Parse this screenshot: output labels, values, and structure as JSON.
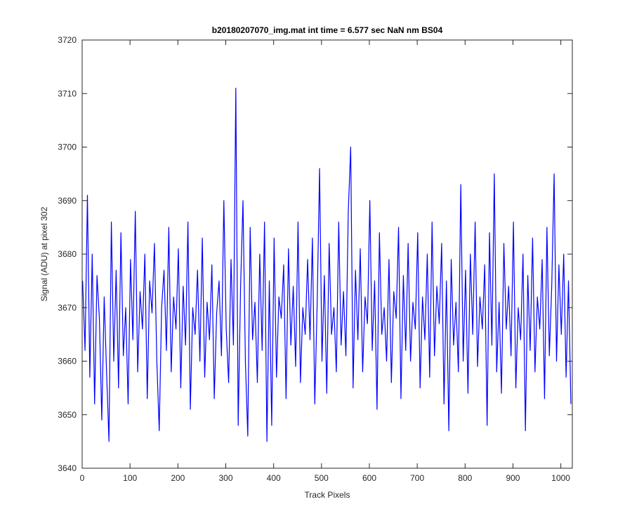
{
  "chart_data": {
    "type": "line",
    "title": "b20180207070_img.mat int time = 6.577 sec  NaN nm BS04",
    "x_label": "Track Pixels",
    "y_label": "Signal (ADU) at pixel 302",
    "xlim": [
      0,
      1024
    ],
    "ylim": [
      3640,
      3720
    ],
    "xticks": [
      0,
      100,
      200,
      300,
      400,
      500,
      600,
      700,
      800,
      900,
      1000
    ],
    "yticks": [
      3640,
      3650,
      3660,
      3670,
      3680,
      3690,
      3700,
      3710,
      3720
    ],
    "grid": false,
    "x": [
      1,
      6,
      11,
      16,
      21,
      26,
      31,
      36,
      41,
      46,
      51,
      56,
      61,
      66,
      71,
      76,
      81,
      86,
      91,
      96,
      101,
      106,
      111,
      116,
      121,
      126,
      131,
      136,
      141,
      146,
      151,
      156,
      161,
      166,
      171,
      176,
      181,
      186,
      191,
      196,
      201,
      206,
      211,
      216,
      221,
      226,
      231,
      236,
      241,
      246,
      251,
      256,
      261,
      266,
      271,
      276,
      281,
      286,
      291,
      296,
      301,
      306,
      311,
      316,
      321,
      326,
      331,
      336,
      341,
      346,
      351,
      356,
      361,
      366,
      371,
      376,
      381,
      386,
      391,
      396,
      401,
      406,
      411,
      416,
      421,
      426,
      431,
      436,
      441,
      446,
      451,
      456,
      461,
      466,
      471,
      476,
      481,
      486,
      491,
      496,
      501,
      506,
      511,
      516,
      521,
      526,
      531,
      536,
      541,
      546,
      551,
      556,
      561,
      566,
      571,
      576,
      581,
      586,
      591,
      596,
      601,
      606,
      611,
      616,
      621,
      626,
      631,
      636,
      641,
      646,
      651,
      656,
      661,
      666,
      671,
      676,
      681,
      686,
      691,
      696,
      701,
      706,
      711,
      716,
      721,
      726,
      731,
      736,
      741,
      746,
      751,
      756,
      761,
      766,
      771,
      776,
      781,
      786,
      791,
      796,
      801,
      806,
      811,
      816,
      821,
      826,
      831,
      836,
      841,
      846,
      851,
      856,
      861,
      866,
      871,
      876,
      881,
      886,
      891,
      896,
      901,
      906,
      911,
      916,
      921,
      926,
      931,
      936,
      941,
      946,
      951,
      956,
      961,
      966,
      971,
      976,
      981,
      986,
      991,
      996,
      1001,
      1006,
      1011,
      1016,
      1021
    ],
    "series": [
      {
        "color": "#0000ff",
        "values": [
          3675,
          3662,
          3691,
          3657,
          3680,
          3652,
          3676,
          3668,
          3649,
          3672,
          3658,
          3645,
          3686,
          3660,
          3677,
          3655,
          3684,
          3661,
          3670,
          3652,
          3679,
          3664,
          3688,
          3658,
          3673,
          3666,
          3680,
          3653,
          3675,
          3669,
          3682,
          3660,
          3647,
          3670,
          3677,
          3662,
          3685,
          3658,
          3672,
          3666,
          3681,
          3655,
          3674,
          3663,
          3686,
          3651,
          3670,
          3665,
          3677,
          3660,
          3683,
          3657,
          3671,
          3664,
          3678,
          3653,
          3669,
          3675,
          3661,
          3690,
          3666,
          3656,
          3679,
          3663,
          3711,
          3648,
          3674,
          3690,
          3660,
          3646,
          3685,
          3664,
          3671,
          3656,
          3680,
          3662,
          3686,
          3645,
          3675,
          3648,
          3683,
          3657,
          3672,
          3668,
          3678,
          3653,
          3681,
          3663,
          3674,
          3659,
          3686,
          3656,
          3670,
          3665,
          3679,
          3664,
          3683,
          3652,
          3671,
          3696,
          3660,
          3676,
          3654,
          3682,
          3665,
          3670,
          3658,
          3686,
          3663,
          3673,
          3661,
          3688,
          3700,
          3655,
          3677,
          3664,
          3681,
          3658,
          3672,
          3667,
          3690,
          3662,
          3675,
          3651,
          3684,
          3665,
          3670,
          3660,
          3679,
          3656,
          3673,
          3668,
          3685,
          3653,
          3676,
          3662,
          3682,
          3660,
          3671,
          3666,
          3684,
          3655,
          3672,
          3664,
          3680,
          3657,
          3686,
          3661,
          3674,
          3667,
          3682,
          3652,
          3675,
          3647,
          3679,
          3663,
          3671,
          3658,
          3693,
          3660,
          3677,
          3654,
          3680,
          3665,
          3686,
          3659,
          3672,
          3666,
          3678,
          3648,
          3684,
          3663,
          3695,
          3658,
          3671,
          3654,
          3682,
          3666,
          3674,
          3661,
          3686,
          3655,
          3670,
          3664,
          3680,
          3647,
          3676,
          3662,
          3683,
          3658,
          3672,
          3666,
          3679,
          3653,
          3685,
          3661,
          3674,
          3695,
          3660,
          3678,
          3665,
          3680,
          3657,
          3675,
          3652
        ]
      }
    ]
  }
}
